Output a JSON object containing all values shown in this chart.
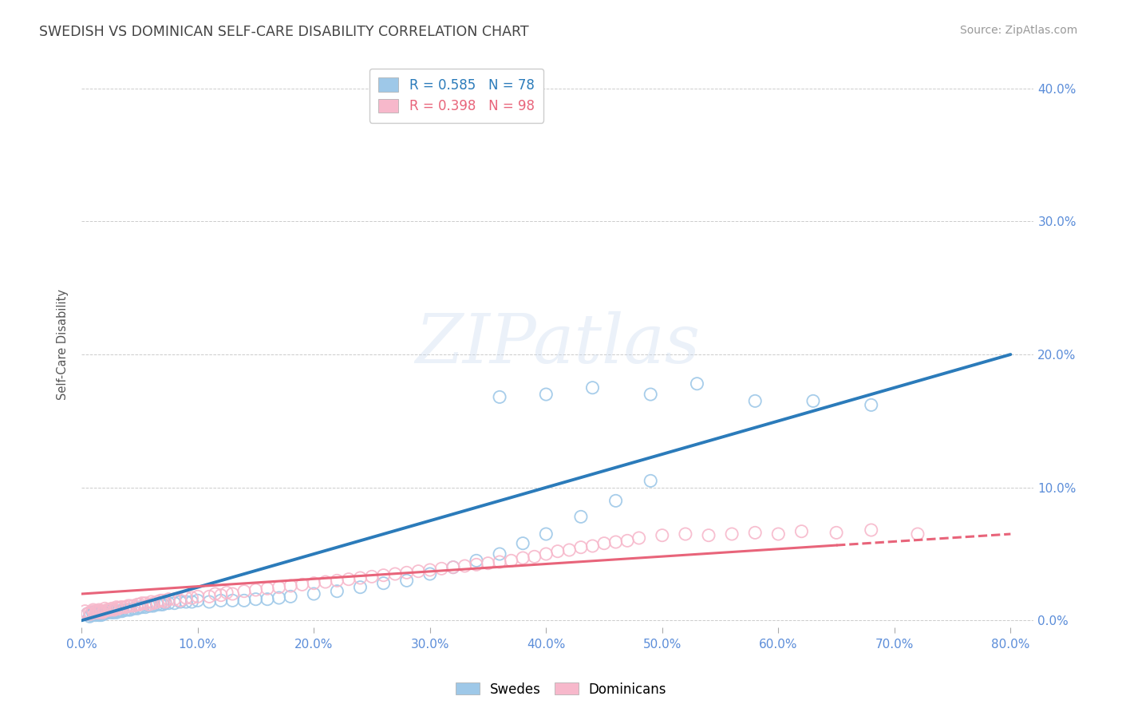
{
  "title": "SWEDISH VS DOMINICAN SELF-CARE DISABILITY CORRELATION CHART",
  "source": "Source: ZipAtlas.com",
  "ylabel": "Self-Care Disability",
  "swedish_R": 0.585,
  "swedish_N": 78,
  "dominican_R": 0.398,
  "dominican_N": 98,
  "swedish_color": "#9ec8e8",
  "dominican_color": "#f7b8cb",
  "swedish_line_color": "#2b7bba",
  "dominican_line_color": "#e8647a",
  "background_color": "#ffffff",
  "grid_color": "#cccccc",
  "watermark": "ZIPatlas",
  "title_color": "#444444",
  "axis_label_color": "#5b8dd9",
  "xlim": [
    0.0,
    0.82
  ],
  "ylim": [
    -0.005,
    0.42
  ],
  "yticks": [
    0.0,
    0.1,
    0.2,
    0.3,
    0.4
  ],
  "xticks": [
    0.0,
    0.1,
    0.2,
    0.3,
    0.4,
    0.5,
    0.6,
    0.7,
    0.8
  ],
  "swedish_line_x0": 0.0,
  "swedish_line_y0": 0.0,
  "swedish_line_x1": 0.8,
  "swedish_line_y1": 0.2,
  "dominican_line_x0": 0.0,
  "dominican_line_y0": 0.02,
  "dominican_line_x1": 0.8,
  "dominican_line_y1": 0.065,
  "swedish_scatter_x": [
    0.005,
    0.007,
    0.008,
    0.01,
    0.01,
    0.012,
    0.013,
    0.014,
    0.015,
    0.015,
    0.016,
    0.017,
    0.018,
    0.019,
    0.02,
    0.02,
    0.022,
    0.023,
    0.025,
    0.026,
    0.027,
    0.028,
    0.03,
    0.03,
    0.032,
    0.034,
    0.035,
    0.038,
    0.04,
    0.042,
    0.045,
    0.048,
    0.05,
    0.052,
    0.055,
    0.058,
    0.06,
    0.062,
    0.065,
    0.068,
    0.07,
    0.072,
    0.075,
    0.08,
    0.085,
    0.09,
    0.095,
    0.1,
    0.11,
    0.12,
    0.13,
    0.14,
    0.15,
    0.16,
    0.17,
    0.18,
    0.2,
    0.22,
    0.24,
    0.26,
    0.28,
    0.3,
    0.32,
    0.34,
    0.36,
    0.38,
    0.4,
    0.43,
    0.46,
    0.49,
    0.36,
    0.4,
    0.44,
    0.49,
    0.53,
    0.58,
    0.63,
    0.68
  ],
  "swedish_scatter_y": [
    0.005,
    0.003,
    0.004,
    0.005,
    0.006,
    0.004,
    0.005,
    0.005,
    0.004,
    0.006,
    0.005,
    0.004,
    0.006,
    0.005,
    0.005,
    0.007,
    0.006,
    0.006,
    0.007,
    0.006,
    0.006,
    0.007,
    0.006,
    0.007,
    0.007,
    0.007,
    0.007,
    0.008,
    0.008,
    0.008,
    0.009,
    0.009,
    0.01,
    0.01,
    0.01,
    0.011,
    0.011,
    0.011,
    0.012,
    0.012,
    0.012,
    0.013,
    0.013,
    0.013,
    0.014,
    0.014,
    0.014,
    0.015,
    0.014,
    0.015,
    0.015,
    0.015,
    0.016,
    0.016,
    0.017,
    0.018,
    0.02,
    0.022,
    0.025,
    0.028,
    0.03,
    0.035,
    0.04,
    0.045,
    0.05,
    0.058,
    0.065,
    0.078,
    0.09,
    0.105,
    0.168,
    0.17,
    0.175,
    0.17,
    0.178,
    0.165,
    0.165,
    0.162
  ],
  "dominican_scatter_x": [
    0.003,
    0.005,
    0.007,
    0.008,
    0.01,
    0.01,
    0.012,
    0.013,
    0.014,
    0.015,
    0.015,
    0.016,
    0.017,
    0.018,
    0.019,
    0.02,
    0.02,
    0.022,
    0.024,
    0.025,
    0.026,
    0.028,
    0.03,
    0.03,
    0.032,
    0.034,
    0.035,
    0.038,
    0.04,
    0.042,
    0.045,
    0.048,
    0.05,
    0.052,
    0.055,
    0.058,
    0.06,
    0.062,
    0.065,
    0.068,
    0.07,
    0.072,
    0.075,
    0.08,
    0.085,
    0.09,
    0.095,
    0.1,
    0.11,
    0.115,
    0.12,
    0.125,
    0.13,
    0.14,
    0.15,
    0.16,
    0.17,
    0.18,
    0.19,
    0.2,
    0.21,
    0.22,
    0.23,
    0.24,
    0.25,
    0.26,
    0.27,
    0.28,
    0.29,
    0.3,
    0.31,
    0.32,
    0.33,
    0.34,
    0.35,
    0.36,
    0.37,
    0.38,
    0.39,
    0.4,
    0.41,
    0.42,
    0.43,
    0.44,
    0.45,
    0.46,
    0.47,
    0.48,
    0.5,
    0.52,
    0.54,
    0.56,
    0.58,
    0.6,
    0.62,
    0.65,
    0.68,
    0.72
  ],
  "dominican_scatter_y": [
    0.007,
    0.005,
    0.006,
    0.005,
    0.007,
    0.008,
    0.006,
    0.007,
    0.007,
    0.006,
    0.008,
    0.007,
    0.007,
    0.006,
    0.007,
    0.007,
    0.009,
    0.008,
    0.008,
    0.008,
    0.009,
    0.008,
    0.009,
    0.01,
    0.009,
    0.01,
    0.01,
    0.01,
    0.011,
    0.011,
    0.011,
    0.012,
    0.012,
    0.013,
    0.013,
    0.012,
    0.014,
    0.013,
    0.014,
    0.015,
    0.015,
    0.014,
    0.016,
    0.016,
    0.015,
    0.017,
    0.017,
    0.018,
    0.018,
    0.02,
    0.019,
    0.021,
    0.02,
    0.022,
    0.023,
    0.024,
    0.025,
    0.026,
    0.027,
    0.028,
    0.029,
    0.03,
    0.031,
    0.032,
    0.033,
    0.034,
    0.035,
    0.036,
    0.037,
    0.038,
    0.039,
    0.04,
    0.041,
    0.042,
    0.043,
    0.044,
    0.045,
    0.047,
    0.048,
    0.05,
    0.052,
    0.053,
    0.055,
    0.056,
    0.058,
    0.059,
    0.06,
    0.062,
    0.064,
    0.065,
    0.064,
    0.065,
    0.066,
    0.065,
    0.067,
    0.066,
    0.068,
    0.065
  ]
}
